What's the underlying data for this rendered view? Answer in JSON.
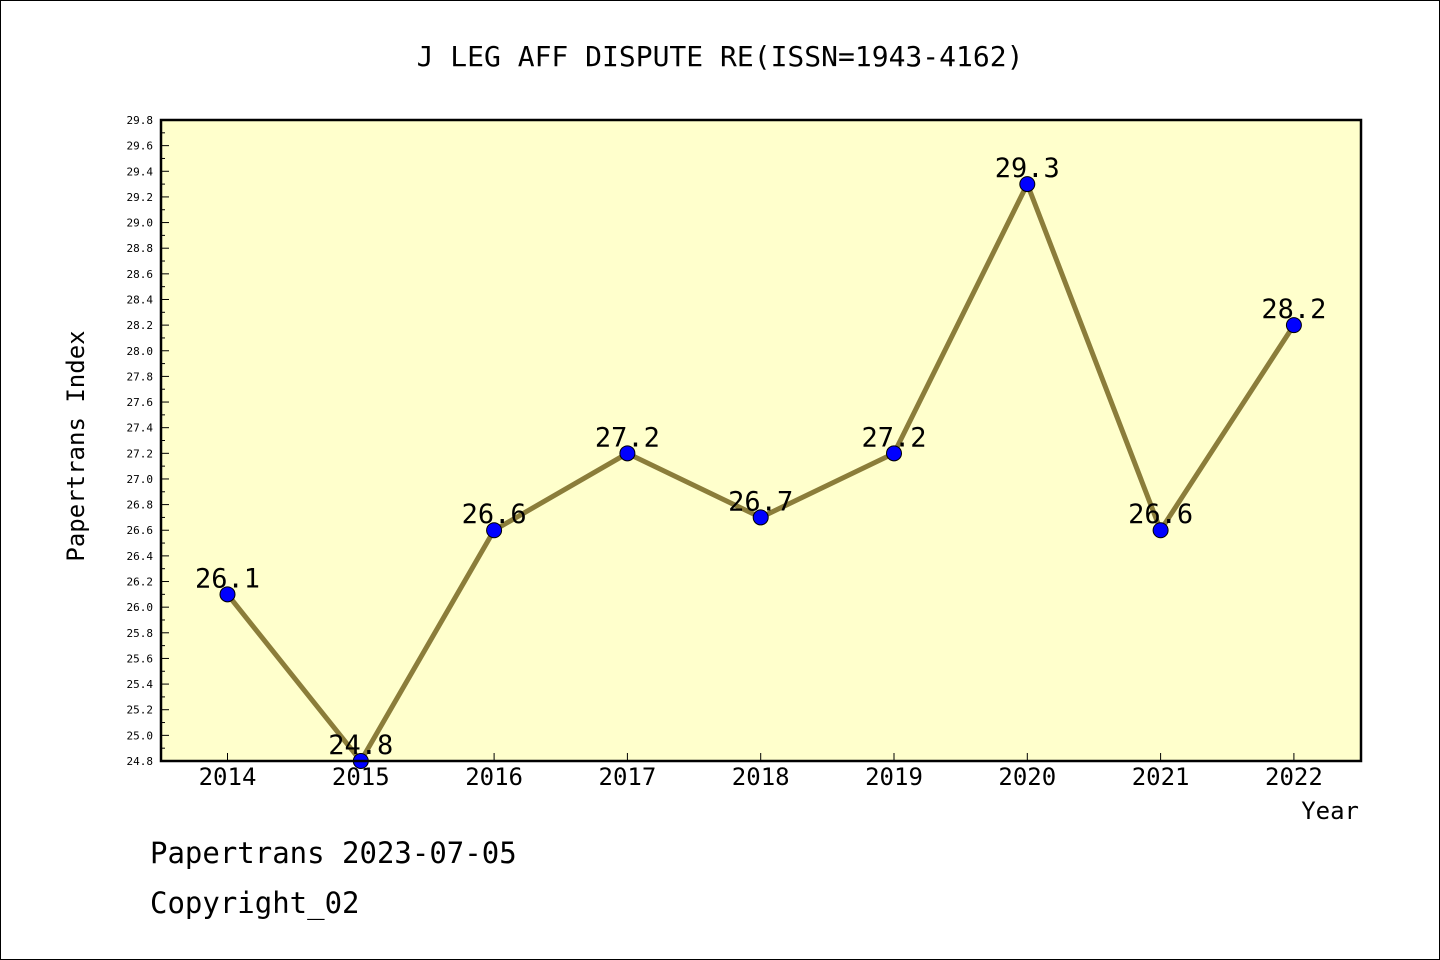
{
  "chart_data": {
    "type": "line",
    "title": "J LEG AFF DISPUTE RE(ISSN=1943-4162)",
    "xlabel": "Year",
    "ylabel": "Papertrans Index",
    "categories": [
      "2014",
      "2015",
      "2016",
      "2017",
      "2018",
      "2019",
      "2020",
      "2021",
      "2022"
    ],
    "values": [
      26.1,
      24.8,
      26.6,
      27.2,
      26.7,
      27.2,
      29.3,
      26.6,
      28.2
    ],
    "data_labels": [
      "26.1",
      "24.8",
      "26.6",
      "27.2",
      "26.7",
      "27.2",
      "29.3",
      "26.6",
      "28.2"
    ],
    "ylim": [
      24.8,
      29.8
    ],
    "yticks": [
      "24.8",
      "25.0",
      "25.2",
      "25.4",
      "25.6",
      "25.8",
      "26.0",
      "26.2",
      "26.4",
      "26.6",
      "26.8",
      "27.0",
      "27.2",
      "27.4",
      "27.6",
      "27.8",
      "28.0",
      "28.2",
      "28.4",
      "28.6",
      "28.8",
      "29.0",
      "29.2",
      "29.4",
      "29.6",
      "29.8"
    ],
    "grid": false,
    "plot_background": "#ffffcc",
    "line_color": "#8b7d3a",
    "marker_color": "#0000ff"
  },
  "footer": {
    "line1": "Papertrans 2023-07-05",
    "line2": "Copyright_02"
  }
}
